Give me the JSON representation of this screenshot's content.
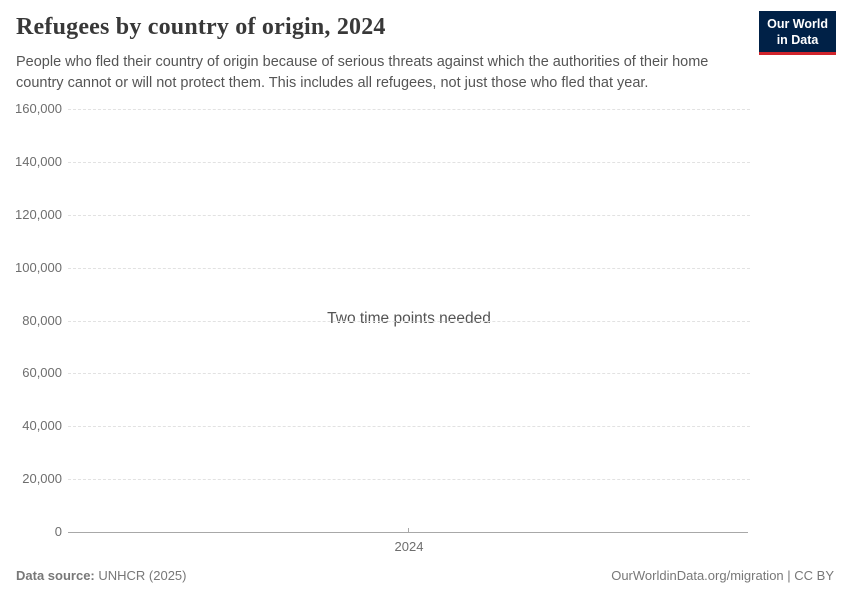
{
  "header": {
    "title": "Refugees by country of origin, 2024",
    "subtitle": "People who fled their country of origin because of serious threats against which the authorities of their home country cannot or will not protect them. This includes all refugees, not just those who fled that year.",
    "logo": {
      "line1": "Our World",
      "line2": "in Data"
    }
  },
  "chart_data": {
    "type": "line",
    "title": "Refugees by country of origin, 2024",
    "xlabel": "",
    "ylabel": "",
    "series": [],
    "empty_message": "Two time points needed",
    "ylim": [
      0,
      160000
    ],
    "y_ticks": [
      {
        "value": 0,
        "label": "0"
      },
      {
        "value": 20000,
        "label": "20,000"
      },
      {
        "value": 40000,
        "label": "40,000"
      },
      {
        "value": 60000,
        "label": "60,000"
      },
      {
        "value": 80000,
        "label": "80,000"
      },
      {
        "value": 100000,
        "label": "100,000"
      },
      {
        "value": 120000,
        "label": "120,000"
      },
      {
        "value": 140000,
        "label": "140,000"
      },
      {
        "value": 160000,
        "label": "160,000"
      }
    ],
    "x_ticks": [
      {
        "value": 2024,
        "label": "2024"
      }
    ],
    "grid": "horizontal-dashed",
    "legend": "none"
  },
  "footer": {
    "datasource_label": "Data source:",
    "datasource_value": " UNHCR (2025)",
    "attribution": "OurWorldinData.org/migration | CC BY"
  },
  "colors": {
    "title_text": "#383838",
    "subtitle_text": "#555555",
    "axis_text": "#6e6e6e",
    "gridline": "#e2e2e2",
    "axis_line": "#a8a8a8",
    "empty_message_text": "#535353",
    "footer_text": "#787878",
    "logo_background": "#002147",
    "logo_accent": "#d0242c",
    "logo_text": "#ffffff"
  }
}
